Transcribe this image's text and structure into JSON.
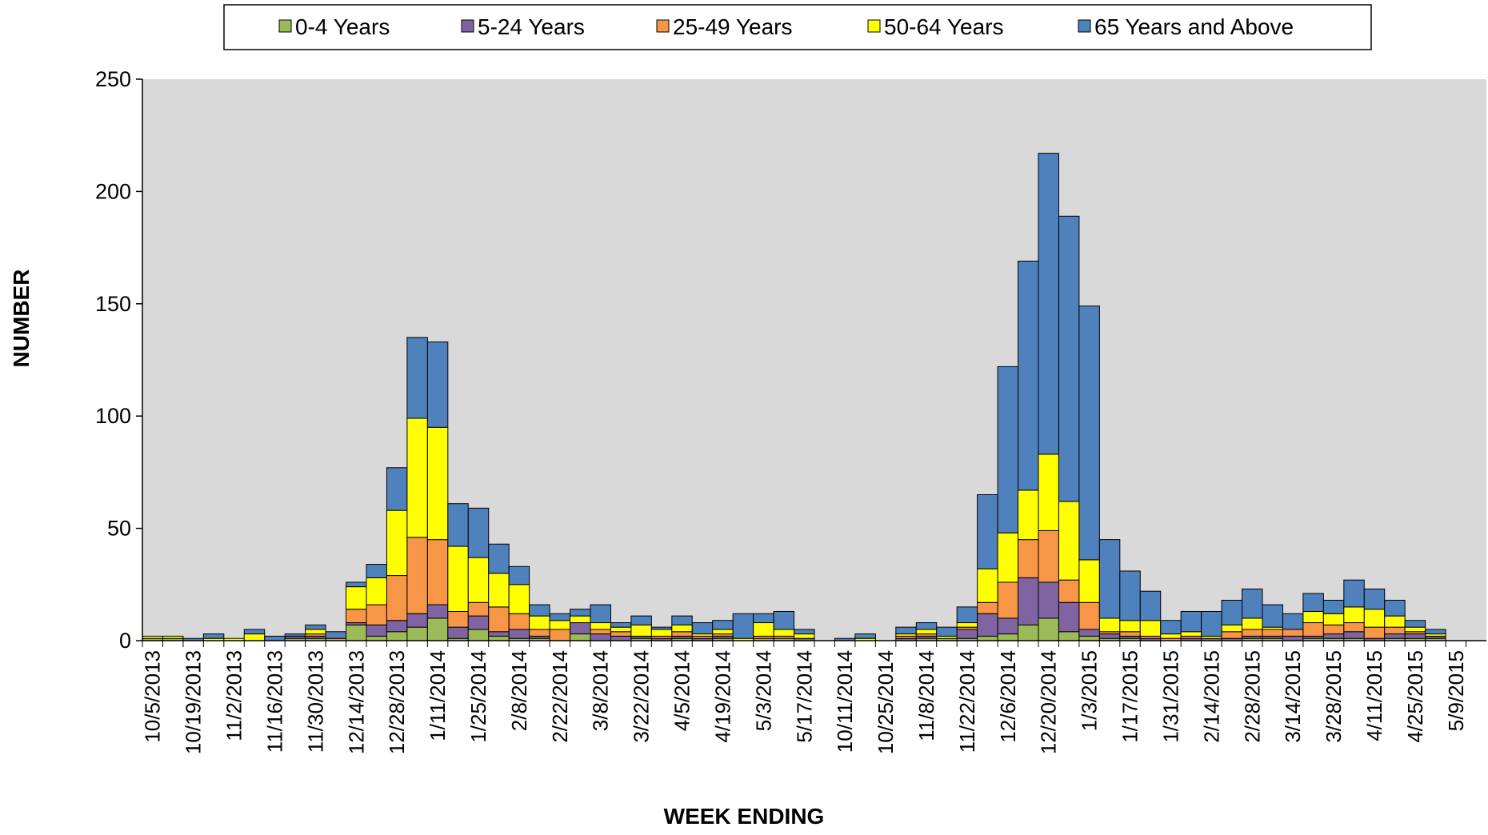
{
  "chart_data": {
    "type": "stacked-bar",
    "x_label": "WEEK ENDING",
    "y_label": "NUMBER",
    "ylim": [
      0,
      250
    ],
    "yticks": [
      0,
      50,
      100,
      150,
      200,
      250
    ],
    "background": "#d9d9d9",
    "legend": "top",
    "categories": [
      "10/5/2013",
      null,
      "10/19/2013",
      null,
      "11/2/2013",
      null,
      "11/16/2013",
      null,
      "11/30/2013",
      null,
      "12/14/2013",
      null,
      "12/28/2013",
      null,
      "1/11/2014",
      null,
      "1/25/2014",
      null,
      "2/8/2014",
      null,
      "2/22/2014",
      null,
      "3/8/2014",
      null,
      "3/22/2014",
      null,
      "4/5/2014",
      null,
      "4/19/2014",
      null,
      "5/3/2014",
      null,
      "5/17/2014",
      null,
      "10/11/2014",
      null,
      "10/25/2014",
      null,
      "11/8/2014",
      null,
      "11/22/2014",
      null,
      "12/6/2014",
      null,
      "12/20/2014",
      null,
      "1/3/2015",
      null,
      "1/17/2015",
      null,
      "1/31/2015",
      null,
      "2/14/2015",
      null,
      "2/28/2015",
      null,
      "3/14/2015",
      null,
      "3/28/2015",
      null,
      "4/11/2015",
      null,
      "4/25/2015",
      null,
      "5/9/2015",
      null
    ],
    "series": [
      {
        "name": "0-4 Years",
        "color": "#9bbb59",
        "values": [
          1,
          1,
          0,
          0,
          0,
          0,
          0,
          1,
          1,
          0,
          7,
          2,
          4,
          6,
          10,
          1,
          5,
          2,
          1,
          1,
          0,
          3,
          0,
          0,
          1,
          0,
          1,
          0,
          1,
          0,
          1,
          1,
          0,
          0,
          0,
          0,
          0,
          0,
          1,
          1,
          1,
          2,
          3,
          7,
          10,
          4,
          2,
          1,
          1,
          0,
          0,
          0,
          0,
          0,
          1,
          1,
          0,
          1,
          1,
          1,
          0,
          1,
          1,
          1,
          0,
          0
        ]
      },
      {
        "name": "5-24 Years",
        "color": "#8064a2",
        "values": [
          0,
          0,
          0,
          0,
          0,
          0,
          0,
          1,
          1,
          0,
          1,
          5,
          5,
          6,
          6,
          5,
          6,
          2,
          4,
          1,
          0,
          5,
          3,
          2,
          1,
          1,
          1,
          1,
          1,
          0,
          0,
          0,
          1,
          0,
          0,
          0,
          0,
          1,
          1,
          0,
          4,
          10,
          7,
          21,
          16,
          13,
          3,
          2,
          1,
          1,
          0,
          1,
          1,
          1,
          1,
          1,
          2,
          1,
          2,
          3,
          1,
          2,
          2,
          1,
          0,
          0
        ]
      },
      {
        "name": "25-49 Years",
        "color": "#f79646",
        "values": [
          0,
          0,
          0,
          0,
          0,
          0,
          0,
          0,
          1,
          1,
          6,
          9,
          20,
          34,
          29,
          7,
          6,
          11,
          7,
          3,
          5,
          0,
          2,
          2,
          0,
          1,
          2,
          1,
          1,
          0,
          1,
          1,
          0,
          0,
          0,
          0,
          0,
          1,
          1,
          0,
          1,
          5,
          16,
          17,
          23,
          10,
          12,
          1,
          2,
          1,
          1,
          1,
          0,
          3,
          3,
          3,
          3,
          6,
          4,
          4,
          5,
          3,
          1,
          0,
          0,
          0
        ]
      },
      {
        "name": "50-64 Years",
        "color": "#ffff00",
        "values": [
          1,
          1,
          0,
          1,
          1,
          3,
          0,
          0,
          2,
          0,
          10,
          12,
          29,
          53,
          50,
          29,
          20,
          15,
          13,
          6,
          4,
          3,
          3,
          2,
          5,
          3,
          3,
          1,
          2,
          1,
          6,
          3,
          2,
          0,
          0,
          1,
          0,
          1,
          2,
          1,
          2,
          15,
          22,
          22,
          34,
          35,
          19,
          6,
          5,
          7,
          2,
          2,
          1,
          3,
          5,
          1,
          0,
          5,
          5,
          7,
          8,
          5,
          2,
          1,
          0,
          0
        ]
      },
      {
        "name": "65 Years and Above",
        "color": "#4f81bd",
        "values": [
          0,
          0,
          1,
          2,
          0,
          2,
          2,
          1,
          2,
          3,
          2,
          6,
          19,
          36,
          38,
          19,
          22,
          13,
          8,
          5,
          3,
          3,
          8,
          2,
          4,
          1,
          4,
          5,
          4,
          11,
          4,
          8,
          2,
          0,
          1,
          2,
          0,
          3,
          3,
          4,
          7,
          33,
          74,
          102,
          134,
          127,
          113,
          35,
          22,
          13,
          6,
          9,
          11,
          11,
          13,
          10,
          7,
          8,
          6,
          12,
          9,
          7,
          3,
          2,
          0,
          0
        ]
      }
    ]
  }
}
